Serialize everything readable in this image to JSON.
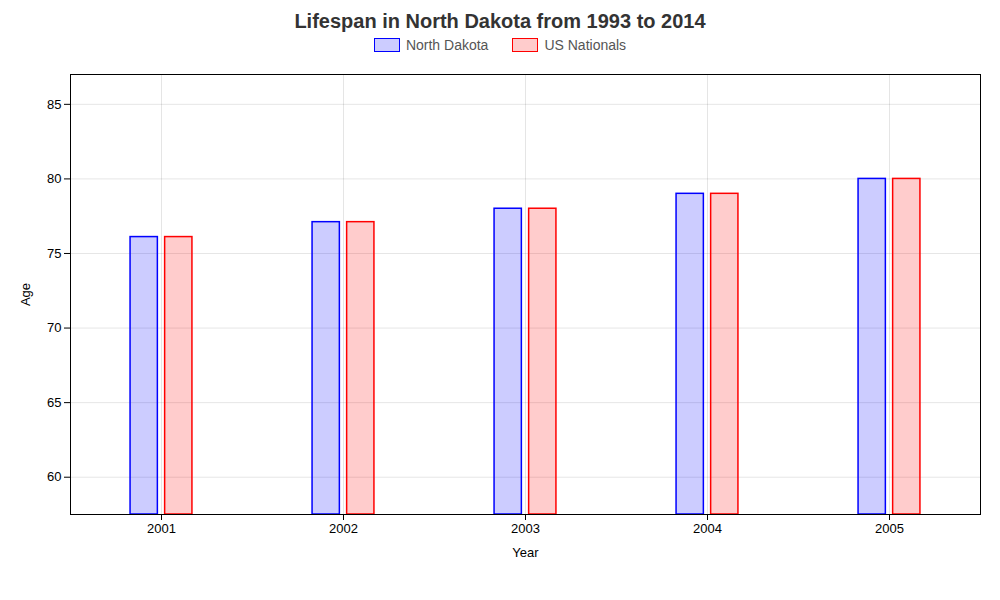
{
  "chart_data": {
    "type": "bar",
    "title": "Lifespan in North Dakota from 1993 to 2014",
    "x_label": "Year",
    "y_label": "Age",
    "categories": [
      "2001",
      "2002",
      "2003",
      "2004",
      "2005"
    ],
    "series": [
      {
        "name": "North Dakota",
        "color": "#0000ff",
        "values": [
          76.1,
          77.1,
          78.0,
          79.0,
          80.0
        ]
      },
      {
        "name": "US Nationals",
        "color": "#ff0000",
        "values": [
          76.1,
          77.1,
          78.0,
          79.0,
          80.0
        ]
      }
    ],
    "ylim": [
      57.5,
      87
    ],
    "yticks": [
      60,
      65,
      70,
      75,
      80,
      85
    ],
    "grid": true,
    "legend": "top"
  }
}
